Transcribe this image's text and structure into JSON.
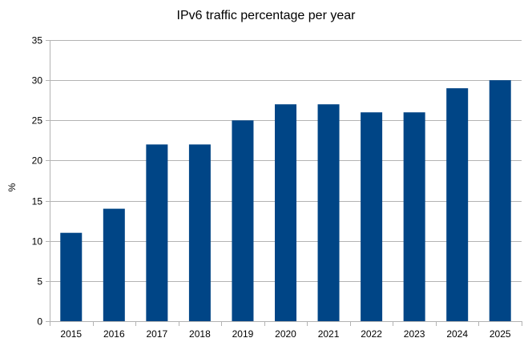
{
  "chart_data": {
    "type": "bar",
    "title": "IPv6 traffic percentage per year",
    "xlabel": "",
    "ylabel": "%",
    "categories": [
      "2015",
      "2016",
      "2017",
      "2018",
      "2019",
      "2020",
      "2021",
      "2022",
      "2023",
      "2024",
      "2025"
    ],
    "values": [
      11,
      14,
      22,
      22,
      25,
      27,
      27,
      26,
      26,
      29,
      30
    ],
    "ylim": [
      0,
      35
    ],
    "yticks": [
      0,
      5,
      10,
      15,
      20,
      25,
      30,
      35
    ],
    "grid": true,
    "legend": "none",
    "bar_color": "#004586",
    "grid_color": "#b3b3b3"
  }
}
